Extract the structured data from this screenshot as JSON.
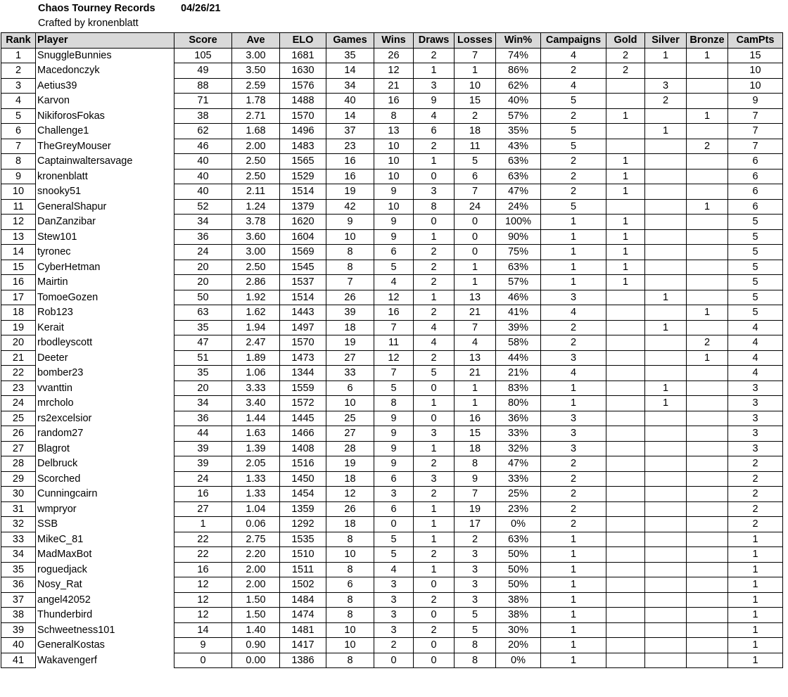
{
  "header": {
    "title": "Chaos Tourney Records",
    "date": "04/26/21",
    "subtitle": "Crafted by kronenblatt"
  },
  "table": {
    "columns": [
      "Rank",
      "Player",
      "Score",
      "Ave",
      "ELO",
      "Games",
      "Wins",
      "Draws",
      "Losses",
      "Win%",
      "Campaigns",
      "Gold",
      "Silver",
      "Bronze",
      "CamPts"
    ],
    "rows": [
      [
        "1",
        "SnuggleBunnies",
        "105",
        "3.00",
        "1681",
        "35",
        "26",
        "2",
        "7",
        "74%",
        "4",
        "2",
        "1",
        "1",
        "15"
      ],
      [
        "2",
        "Macedonczyk",
        "49",
        "3.50",
        "1630",
        "14",
        "12",
        "1",
        "1",
        "86%",
        "2",
        "2",
        "",
        "",
        "10"
      ],
      [
        "3",
        "Aetius39",
        "88",
        "2.59",
        "1576",
        "34",
        "21",
        "3",
        "10",
        "62%",
        "4",
        "",
        "3",
        "",
        "10"
      ],
      [
        "4",
        "Karvon",
        "71",
        "1.78",
        "1488",
        "40",
        "16",
        "9",
        "15",
        "40%",
        "5",
        "",
        "2",
        "",
        "9"
      ],
      [
        "5",
        "NikiforosFokas",
        "38",
        "2.71",
        "1570",
        "14",
        "8",
        "4",
        "2",
        "57%",
        "2",
        "1",
        "",
        "1",
        "7"
      ],
      [
        "6",
        "Challenge1",
        "62",
        "1.68",
        "1496",
        "37",
        "13",
        "6",
        "18",
        "35%",
        "5",
        "",
        "1",
        "",
        "7"
      ],
      [
        "7",
        "TheGreyMouser",
        "46",
        "2.00",
        "1483",
        "23",
        "10",
        "2",
        "11",
        "43%",
        "5",
        "",
        "",
        "2",
        "7"
      ],
      [
        "8",
        "Captainwaltersavage",
        "40",
        "2.50",
        "1565",
        "16",
        "10",
        "1",
        "5",
        "63%",
        "2",
        "1",
        "",
        "",
        "6"
      ],
      [
        "9",
        "kronenblatt",
        "40",
        "2.50",
        "1529",
        "16",
        "10",
        "0",
        "6",
        "63%",
        "2",
        "1",
        "",
        "",
        "6"
      ],
      [
        "10",
        "snooky51",
        "40",
        "2.11",
        "1514",
        "19",
        "9",
        "3",
        "7",
        "47%",
        "2",
        "1",
        "",
        "",
        "6"
      ],
      [
        "11",
        "GeneralShapur",
        "52",
        "1.24",
        "1379",
        "42",
        "10",
        "8",
        "24",
        "24%",
        "5",
        "",
        "",
        "1",
        "6"
      ],
      [
        "12",
        "DanZanzibar",
        "34",
        "3.78",
        "1620",
        "9",
        "9",
        "0",
        "0",
        "100%",
        "1",
        "1",
        "",
        "",
        "5"
      ],
      [
        "13",
        "Stew101",
        "36",
        "3.60",
        "1604",
        "10",
        "9",
        "1",
        "0",
        "90%",
        "1",
        "1",
        "",
        "",
        "5"
      ],
      [
        "14",
        "tyronec",
        "24",
        "3.00",
        "1569",
        "8",
        "6",
        "2",
        "0",
        "75%",
        "1",
        "1",
        "",
        "",
        "5"
      ],
      [
        "15",
        "CyberHetman",
        "20",
        "2.50",
        "1545",
        "8",
        "5",
        "2",
        "1",
        "63%",
        "1",
        "1",
        "",
        "",
        "5"
      ],
      [
        "16",
        "Mairtin",
        "20",
        "2.86",
        "1537",
        "7",
        "4",
        "2",
        "1",
        "57%",
        "1",
        "1",
        "",
        "",
        "5"
      ],
      [
        "17",
        "TomoeGozen",
        "50",
        "1.92",
        "1514",
        "26",
        "12",
        "1",
        "13",
        "46%",
        "3",
        "",
        "1",
        "",
        "5"
      ],
      [
        "18",
        "Rob123",
        "63",
        "1.62",
        "1443",
        "39",
        "16",
        "2",
        "21",
        "41%",
        "4",
        "",
        "",
        "1",
        "5"
      ],
      [
        "19",
        "Kerait",
        "35",
        "1.94",
        "1497",
        "18",
        "7",
        "4",
        "7",
        "39%",
        "2",
        "",
        "1",
        "",
        "4"
      ],
      [
        "20",
        "rbodleyscott",
        "47",
        "2.47",
        "1570",
        "19",
        "11",
        "4",
        "4",
        "58%",
        "2",
        "",
        "",
        "2",
        "4"
      ],
      [
        "21",
        "Deeter",
        "51",
        "1.89",
        "1473",
        "27",
        "12",
        "2",
        "13",
        "44%",
        "3",
        "",
        "",
        "1",
        "4"
      ],
      [
        "22",
        "bomber23",
        "35",
        "1.06",
        "1344",
        "33",
        "7",
        "5",
        "21",
        "21%",
        "4",
        "",
        "",
        "",
        "4"
      ],
      [
        "23",
        "vvanttin",
        "20",
        "3.33",
        "1559",
        "6",
        "5",
        "0",
        "1",
        "83%",
        "1",
        "",
        "1",
        "",
        "3"
      ],
      [
        "24",
        "mrcholo",
        "34",
        "3.40",
        "1572",
        "10",
        "8",
        "1",
        "1",
        "80%",
        "1",
        "",
        "1",
        "",
        "3"
      ],
      [
        "25",
        "rs2excelsior",
        "36",
        "1.44",
        "1445",
        "25",
        "9",
        "0",
        "16",
        "36%",
        "3",
        "",
        "",
        "",
        "3"
      ],
      [
        "26",
        "random27",
        "44",
        "1.63",
        "1466",
        "27",
        "9",
        "3",
        "15",
        "33%",
        "3",
        "",
        "",
        "",
        "3"
      ],
      [
        "27",
        "Blagrot",
        "39",
        "1.39",
        "1408",
        "28",
        "9",
        "1",
        "18",
        "32%",
        "3",
        "",
        "",
        "",
        "3"
      ],
      [
        "28",
        "Delbruck",
        "39",
        "2.05",
        "1516",
        "19",
        "9",
        "2",
        "8",
        "47%",
        "2",
        "",
        "",
        "",
        "2"
      ],
      [
        "29",
        "Scorched",
        "24",
        "1.33",
        "1450",
        "18",
        "6",
        "3",
        "9",
        "33%",
        "2",
        "",
        "",
        "",
        "2"
      ],
      [
        "30",
        "Cunningcairn",
        "16",
        "1.33",
        "1454",
        "12",
        "3",
        "2",
        "7",
        "25%",
        "2",
        "",
        "",
        "",
        "2"
      ],
      [
        "31",
        "wmpryor",
        "27",
        "1.04",
        "1359",
        "26",
        "6",
        "1",
        "19",
        "23%",
        "2",
        "",
        "",
        "",
        "2"
      ],
      [
        "32",
        "SSB",
        "1",
        "0.06",
        "1292",
        "18",
        "0",
        "1",
        "17",
        "0%",
        "2",
        "",
        "",
        "",
        "2"
      ],
      [
        "33",
        "MikeC_81",
        "22",
        "2.75",
        "1535",
        "8",
        "5",
        "1",
        "2",
        "63%",
        "1",
        "",
        "",
        "",
        "1"
      ],
      [
        "34",
        "MadMaxBot",
        "22",
        "2.20",
        "1510",
        "10",
        "5",
        "2",
        "3",
        "50%",
        "1",
        "",
        "",
        "",
        "1"
      ],
      [
        "35",
        "roguedjack",
        "16",
        "2.00",
        "1511",
        "8",
        "4",
        "1",
        "3",
        "50%",
        "1",
        "",
        "",
        "",
        "1"
      ],
      [
        "36",
        "Nosy_Rat",
        "12",
        "2.00",
        "1502",
        "6",
        "3",
        "0",
        "3",
        "50%",
        "1",
        "",
        "",
        "",
        "1"
      ],
      [
        "37",
        "angel42052",
        "12",
        "1.50",
        "1484",
        "8",
        "3",
        "2",
        "3",
        "38%",
        "1",
        "",
        "",
        "",
        "1"
      ],
      [
        "38",
        "Thunderbird",
        "12",
        "1.50",
        "1474",
        "8",
        "3",
        "0",
        "5",
        "38%",
        "1",
        "",
        "",
        "",
        "1"
      ],
      [
        "39",
        "Schweetness101",
        "14",
        "1.40",
        "1481",
        "10",
        "3",
        "2",
        "5",
        "30%",
        "1",
        "",
        "",
        "",
        "1"
      ],
      [
        "40",
        "GeneralKostas",
        "9",
        "0.90",
        "1417",
        "10",
        "2",
        "0",
        "8",
        "20%",
        "1",
        "",
        "",
        "",
        "1"
      ],
      [
        "41",
        "Wakavengerf",
        "0",
        "0.00",
        "1386",
        "8",
        "0",
        "0",
        "8",
        "0%",
        "1",
        "",
        "",
        "",
        "1"
      ]
    ]
  }
}
